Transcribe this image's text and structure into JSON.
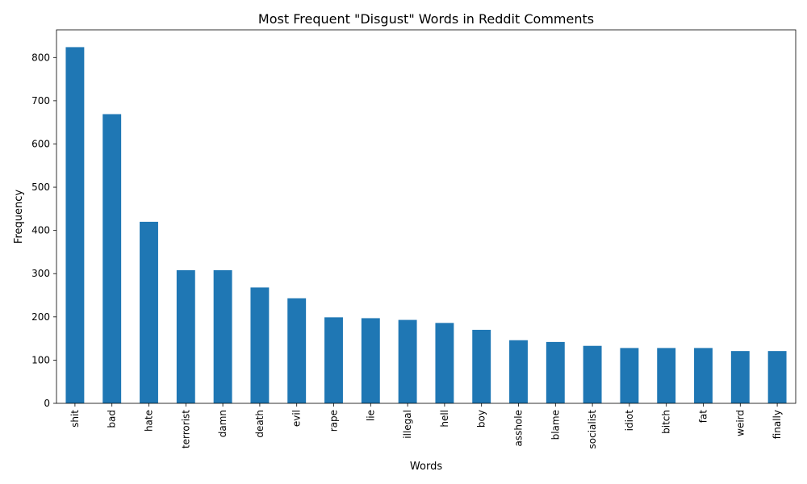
{
  "chart_data": {
    "type": "bar",
    "title": "Most Frequent \"Disgust\" Words in Reddit Comments",
    "xlabel": "Words",
    "ylabel": "Frequency",
    "categories": [
      "shit",
      "bad",
      "hate",
      "terrorist",
      "damn",
      "death",
      "evil",
      "rape",
      "lie",
      "illegal",
      "hell",
      "boy",
      "asshole",
      "blame",
      "socialist",
      "idiot",
      "bitch",
      "fat",
      "weird",
      "finally"
    ],
    "values": [
      824,
      669,
      420,
      308,
      308,
      268,
      243,
      199,
      197,
      193,
      186,
      170,
      146,
      142,
      133,
      128,
      128,
      128,
      121,
      121
    ],
    "ylim": [
      0,
      864
    ],
    "yticks": [
      0,
      100,
      200,
      300,
      400,
      500,
      600,
      700,
      800
    ],
    "grid": false,
    "legend": "none",
    "bar_color": "#1f77b4"
  }
}
